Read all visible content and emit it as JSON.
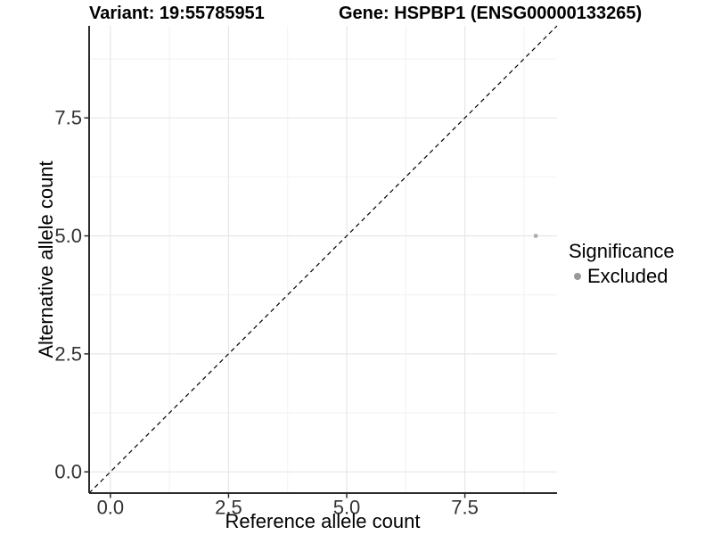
{
  "header": {
    "variant_title": "Variant: 19:55785951",
    "gene_title": "Gene: HSPBP1 (ENSG00000133265)"
  },
  "chart_data": {
    "type": "scatter",
    "title": "Variant: 19:55785951   Gene: HSPBP1 (ENSG00000133265)",
    "xlabel": "Reference allele count",
    "ylabel": "Alternative allele count",
    "xlim": [
      -0.45,
      9.45
    ],
    "ylim": [
      -0.45,
      9.45
    ],
    "x_ticks": [
      0,
      2.5,
      5,
      7.5
    ],
    "y_ticks": [
      0,
      2.5,
      5,
      7.5
    ],
    "x_tick_labels": [
      "0.0",
      "2.5",
      "5.0",
      "7.5"
    ],
    "y_tick_labels": [
      "0.0",
      "2.5",
      "5.0",
      "7.5"
    ],
    "minor_ticks": [
      1.25,
      3.75,
      6.25,
      8.75
    ],
    "grid": true,
    "series": [
      {
        "name": "Excluded",
        "color": "#acacac",
        "points": [
          {
            "x": 9,
            "y": 5
          }
        ]
      }
    ],
    "reference_line": {
      "style": "dashed",
      "color": "#000000",
      "from": [
        -0.45,
        -0.45
      ],
      "to": [
        9.45,
        9.45
      ]
    },
    "legend": {
      "title": "Significance",
      "position": "right",
      "items": [
        {
          "label": "Excluded",
          "color": "#999999"
        }
      ]
    }
  },
  "colors": {
    "background": "#ffffff",
    "axis_line": "#2b2b2b",
    "tick_text": "#333333",
    "grid_major": "#e7e7e7",
    "grid_minor": "#f2f2f2",
    "point": "#acacac"
  }
}
